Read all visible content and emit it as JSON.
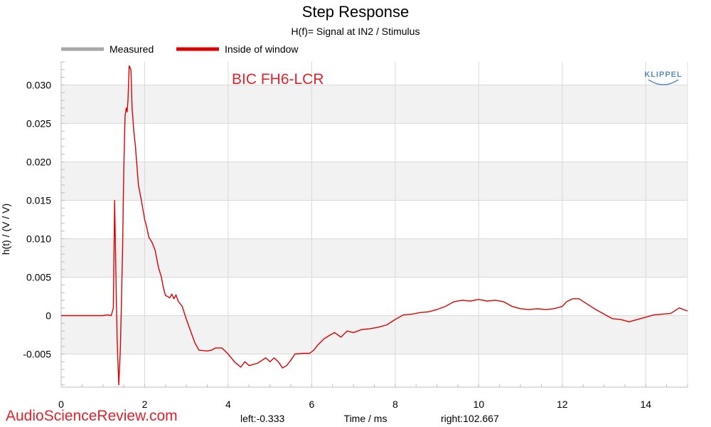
{
  "chart_data": {
    "type": "line",
    "title": "Step Response",
    "subtitle": "H(f)= Signal at IN2 / Stimulus",
    "xlabel": "Time / ms",
    "ylabel": "h(t) / (V / V)",
    "xlim": [
      0,
      15
    ],
    "ylim": [
      -0.0093,
      0.033
    ],
    "x_ticks": [
      0,
      2,
      4,
      6,
      8,
      10,
      12,
      14
    ],
    "y_ticks": [
      -0.005,
      0,
      0.005,
      0.01,
      0.015,
      0.02,
      0.025,
      0.03
    ],
    "x_tick_labels": [
      "0",
      "2",
      "4",
      "6",
      "8",
      "10",
      "12",
      "14"
    ],
    "y_tick_labels": [
      "-0.005",
      "0",
      "0.005",
      "0.010",
      "0.015",
      "0.020",
      "0.025",
      "0.030"
    ],
    "legend": [
      {
        "name": "Measured",
        "color": "#a8a8a8"
      },
      {
        "name": "Inside of window",
        "color": "#e00000"
      }
    ],
    "annotation": "BIC FH6-LCR",
    "left_label": "left:-0.333",
    "right_label": "right:102.667",
    "grid": true,
    "series": [
      {
        "name": "Inside of window",
        "color": "#e00000",
        "points": [
          [
            0,
            0
          ],
          [
            0.5,
            0
          ],
          [
            1.0,
            0
          ],
          [
            1.1,
            0.0001
          ],
          [
            1.2,
            0
          ],
          [
            1.25,
            0.001
          ],
          [
            1.28,
            0.015
          ],
          [
            1.31,
            0.006
          ],
          [
            1.34,
            -0.003
          ],
          [
            1.38,
            -0.009
          ],
          [
            1.42,
            -0.004
          ],
          [
            1.47,
            0.008
          ],
          [
            1.5,
            0.019
          ],
          [
            1.53,
            0.026
          ],
          [
            1.56,
            0.027
          ],
          [
            1.58,
            0.0265
          ],
          [
            1.6,
            0.028
          ],
          [
            1.63,
            0.0325
          ],
          [
            1.67,
            0.032
          ],
          [
            1.7,
            0.027
          ],
          [
            1.74,
            0.024
          ],
          [
            1.78,
            0.022
          ],
          [
            1.85,
            0.017
          ],
          [
            1.92,
            0.015
          ],
          [
            2.0,
            0.0125
          ],
          [
            2.05,
            0.0115
          ],
          [
            2.1,
            0.0102
          ],
          [
            2.18,
            0.0095
          ],
          [
            2.25,
            0.0085
          ],
          [
            2.33,
            0.0063
          ],
          [
            2.4,
            0.005
          ],
          [
            2.45,
            0.0036
          ],
          [
            2.5,
            0.0026
          ],
          [
            2.55,
            0.0025
          ],
          [
            2.6,
            0.0023
          ],
          [
            2.65,
            0.0028
          ],
          [
            2.7,
            0.0022
          ],
          [
            2.75,
            0.0027
          ],
          [
            2.8,
            0.0019
          ],
          [
            2.9,
            0.0012
          ],
          [
            3.0,
            -0.0005
          ],
          [
            3.1,
            -0.002
          ],
          [
            3.2,
            -0.0035
          ],
          [
            3.3,
            -0.0045
          ],
          [
            3.5,
            -0.0046
          ],
          [
            3.6,
            -0.0045
          ],
          [
            3.7,
            -0.0042
          ],
          [
            3.85,
            -0.0042
          ],
          [
            4.0,
            -0.005
          ],
          [
            4.15,
            -0.006
          ],
          [
            4.3,
            -0.0067
          ],
          [
            4.4,
            -0.006
          ],
          [
            4.5,
            -0.0065
          ],
          [
            4.7,
            -0.0062
          ],
          [
            4.9,
            -0.0055
          ],
          [
            5.0,
            -0.006
          ],
          [
            5.1,
            -0.0055
          ],
          [
            5.2,
            -0.006
          ],
          [
            5.3,
            -0.0068
          ],
          [
            5.4,
            -0.0065
          ],
          [
            5.5,
            -0.0058
          ],
          [
            5.6,
            -0.005
          ],
          [
            5.8,
            -0.0049
          ],
          [
            5.95,
            -0.0049
          ],
          [
            6.05,
            -0.0045
          ],
          [
            6.15,
            -0.0038
          ],
          [
            6.3,
            -0.003
          ],
          [
            6.45,
            -0.0025
          ],
          [
            6.55,
            -0.0022
          ],
          [
            6.7,
            -0.0028
          ],
          [
            6.85,
            -0.002
          ],
          [
            7.0,
            -0.0022
          ],
          [
            7.2,
            -0.0018
          ],
          [
            7.4,
            -0.0017
          ],
          [
            7.6,
            -0.0015
          ],
          [
            7.8,
            -0.0012
          ],
          [
            8.0,
            -0.0005
          ],
          [
            8.2,
            0.0001
          ],
          [
            8.4,
            0.0002
          ],
          [
            8.6,
            0.0004
          ],
          [
            8.8,
            0.0005
          ],
          [
            9.0,
            0.0008
          ],
          [
            9.2,
            0.0012
          ],
          [
            9.4,
            0.0018
          ],
          [
            9.6,
            0.002
          ],
          [
            9.8,
            0.0019
          ],
          [
            10.0,
            0.0021
          ],
          [
            10.2,
            0.0019
          ],
          [
            10.4,
            0.002
          ],
          [
            10.6,
            0.0018
          ],
          [
            10.8,
            0.0012
          ],
          [
            11.0,
            0.0009
          ],
          [
            11.2,
            0.0008
          ],
          [
            11.4,
            0.0009
          ],
          [
            11.6,
            0.0008
          ],
          [
            11.8,
            0.0009
          ],
          [
            12.0,
            0.0012
          ],
          [
            12.1,
            0.0018
          ],
          [
            12.25,
            0.0022
          ],
          [
            12.4,
            0.0022
          ],
          [
            12.6,
            0.0015
          ],
          [
            12.8,
            0.0008
          ],
          [
            13.0,
            0.0002
          ],
          [
            13.2,
            -0.0004
          ],
          [
            13.4,
            -0.0005
          ],
          [
            13.6,
            -0.0008
          ],
          [
            13.8,
            -0.0005
          ],
          [
            14.0,
            -0.0002
          ],
          [
            14.2,
            0.0001
          ],
          [
            14.4,
            0.0002
          ],
          [
            14.6,
            0.0003
          ],
          [
            14.8,
            0.001
          ],
          [
            15.0,
            0.0006
          ]
        ]
      }
    ]
  },
  "logo_text": "KLIPPEL",
  "watermark": "AudioScienceReview.com"
}
